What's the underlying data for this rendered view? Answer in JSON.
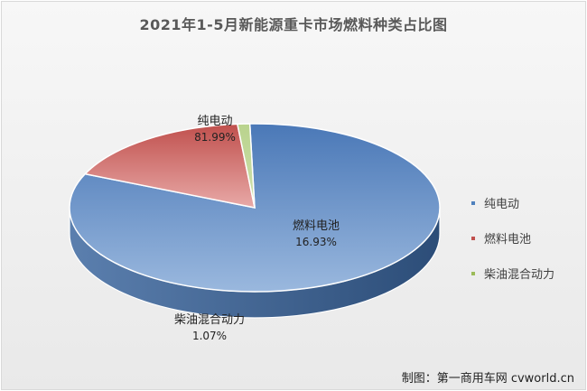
{
  "chart_data": {
    "type": "pie",
    "title": "2021年1-5月新能源重卡市场燃料种类占比图",
    "series": [
      {
        "name": "纯电动",
        "value": 81.99,
        "label": "81.99%",
        "color": "#4f81bd"
      },
      {
        "name": "燃料电池",
        "value": 16.93,
        "label": "16.93%",
        "color": "#c0504d"
      },
      {
        "name": "柴油混合动力",
        "value": 1.07,
        "label": "1.07%",
        "color": "#9bbb59"
      }
    ],
    "legend_position": "right"
  },
  "footer": {
    "credit": "制图：第一商用车网 cvworld.cn"
  }
}
